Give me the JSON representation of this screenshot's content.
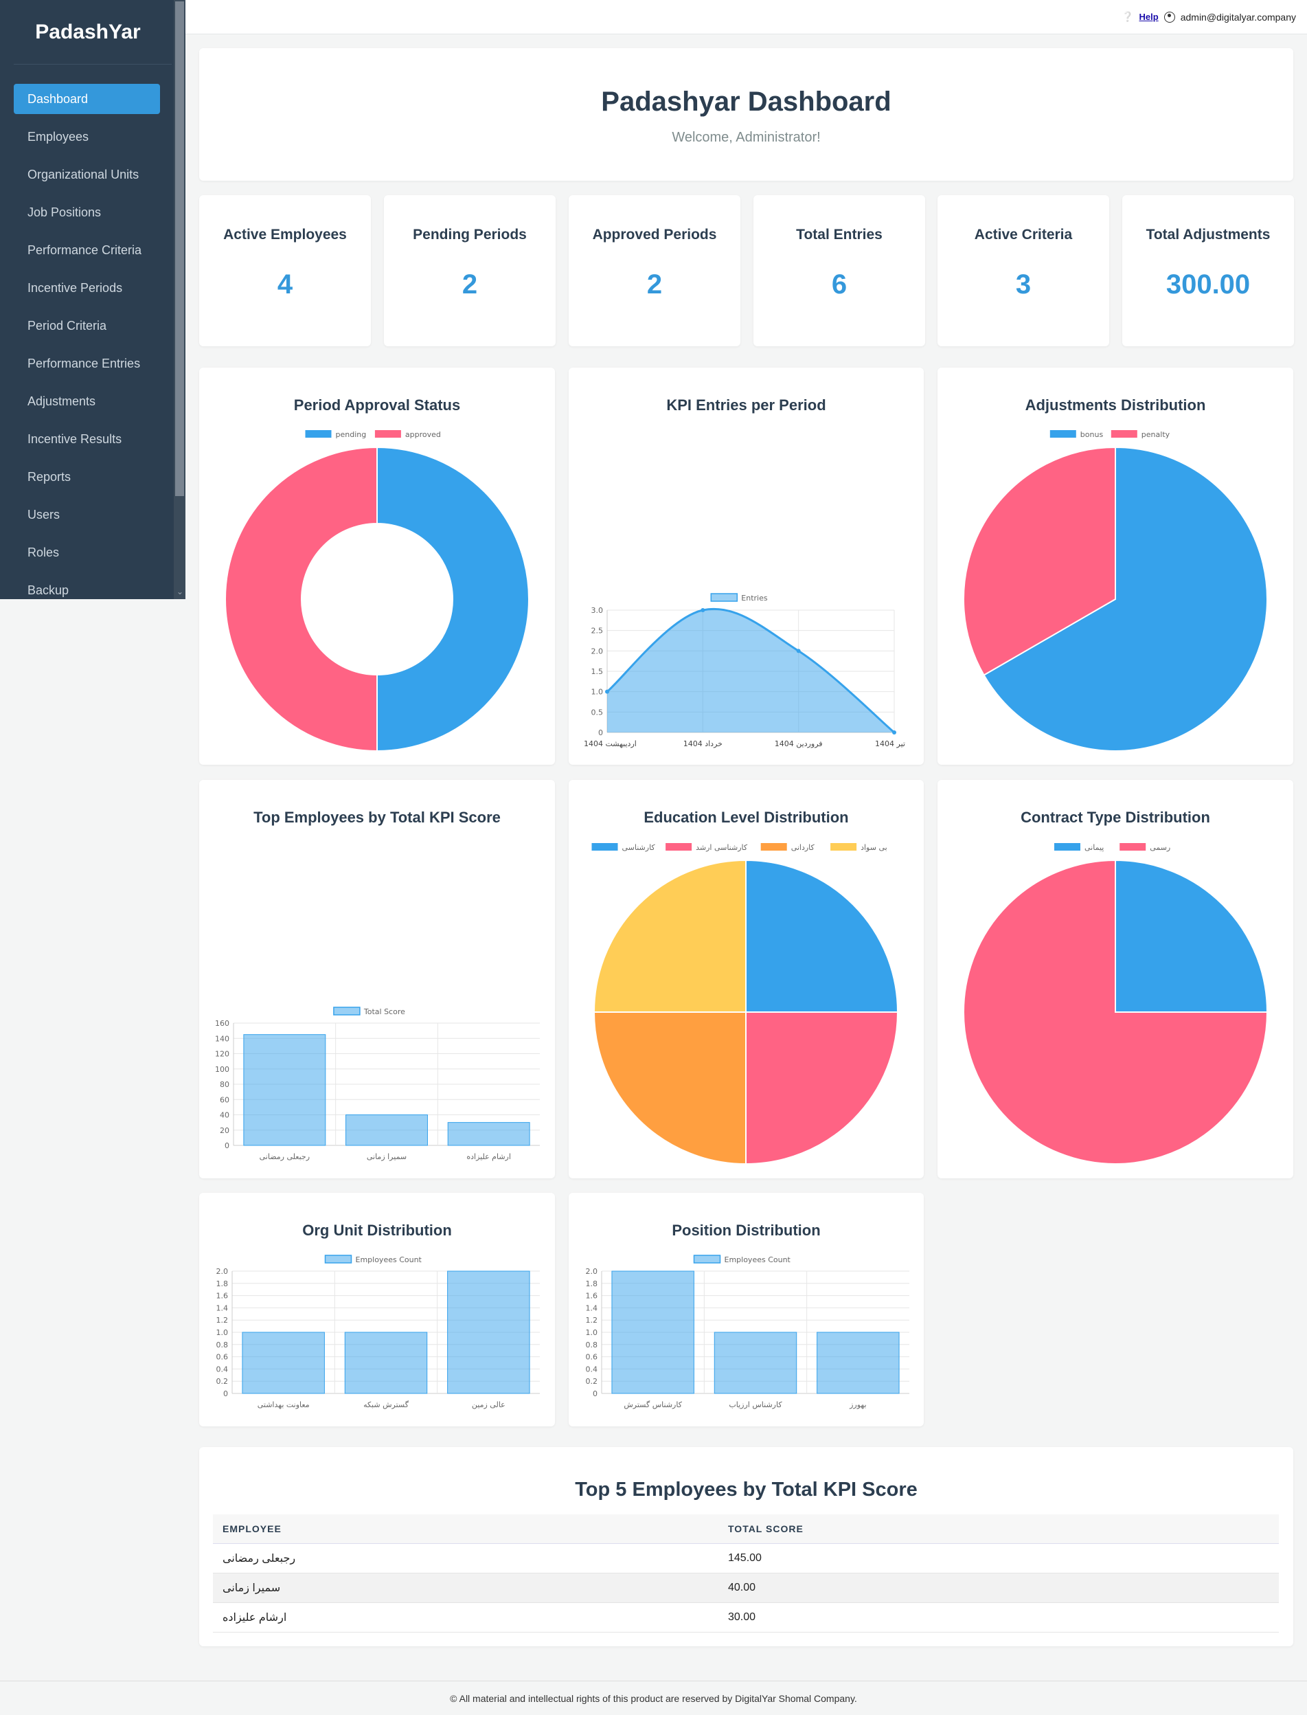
{
  "sidebar": {
    "brand": "PadashYar",
    "items": [
      {
        "label": "Dashboard"
      },
      {
        "label": "Employees"
      },
      {
        "label": "Organizational Units"
      },
      {
        "label": "Job Positions"
      },
      {
        "label": "Performance Criteria"
      },
      {
        "label": "Incentive Periods"
      },
      {
        "label": "Period Criteria"
      },
      {
        "label": "Performance Entries"
      },
      {
        "label": "Adjustments"
      },
      {
        "label": "Incentive Results"
      },
      {
        "label": "Reports"
      },
      {
        "label": "Users"
      },
      {
        "label": "Roles"
      },
      {
        "label": "Backup"
      }
    ]
  },
  "topbar": {
    "help": "Help",
    "user": "admin@digitalyar.company"
  },
  "header": {
    "title": "Padashyar Dashboard",
    "subtitle": "Welcome, Administrator!"
  },
  "stats": [
    {
      "title": "Active Employees",
      "value": "4"
    },
    {
      "title": "Pending Periods",
      "value": "2"
    },
    {
      "title": "Approved Periods",
      "value": "2"
    },
    {
      "title": "Total Entries",
      "value": "6"
    },
    {
      "title": "Active Criteria",
      "value": "3"
    },
    {
      "title": "Total Adjustments",
      "value": "300.00"
    }
  ],
  "colors": {
    "blue": "#36a2eb",
    "pink": "#ff6384",
    "orange": "#ff9f40",
    "yellow": "#ffcd56"
  },
  "chart_data": [
    {
      "type": "pie",
      "title": "Period Approval Status",
      "donut": true,
      "labels": [
        "pending",
        "approved"
      ],
      "values": [
        2,
        2
      ],
      "legend": "top"
    },
    {
      "type": "area",
      "title": "KPI Entries per Period",
      "categories": [
        "اردیبهشت 1404",
        "خرداد 1404",
        "فروردین 1404",
        "تیر 1404"
      ],
      "series": [
        {
          "name": "Entries",
          "values": [
            1,
            3,
            2,
            0
          ]
        }
      ],
      "ylim": [
        0,
        3
      ],
      "yticks": [
        "0",
        "0.5",
        "1.0",
        "1.5",
        "2.0",
        "2.5",
        "3.0"
      ]
    },
    {
      "type": "pie",
      "title": "Adjustments Distribution",
      "labels": [
        "bonus",
        "penalty"
      ],
      "values": [
        200,
        100
      ],
      "legend": "top"
    },
    {
      "type": "bar",
      "title": "Top Employees by Total KPI Score",
      "categories": [
        "رجبعلی رمضانی",
        "سمیرا زمانی",
        "ارشام علیزاده"
      ],
      "series": [
        {
          "name": "Total Score",
          "values": [
            145,
            40,
            30
          ]
        }
      ],
      "ylim": [
        0,
        160
      ],
      "yticks": [
        "0",
        "20",
        "40",
        "60",
        "80",
        "100",
        "120",
        "140",
        "160"
      ]
    },
    {
      "type": "pie",
      "title": "Education Level Distribution",
      "labels": [
        "کارشناسی",
        "کارشناسی ارشد",
        "کاردانی",
        "بی سواد"
      ],
      "values": [
        1,
        1,
        1,
        1
      ],
      "legend": "top"
    },
    {
      "type": "pie",
      "title": "Contract Type Distribution",
      "labels": [
        "پیمانی",
        "رسمی"
      ],
      "values": [
        1,
        3
      ],
      "legend": "top"
    },
    {
      "type": "bar",
      "title": "Org Unit Distribution",
      "categories": [
        "معاونت بهداشتی",
        "گسترش شبکه",
        "عالی زمین"
      ],
      "series": [
        {
          "name": "Employees Count",
          "values": [
            1,
            1,
            2
          ]
        }
      ],
      "ylim": [
        0,
        2
      ],
      "yticks": [
        "0",
        "0.2",
        "0.4",
        "0.6",
        "0.8",
        "1.0",
        "1.2",
        "1.4",
        "1.6",
        "1.8",
        "2.0"
      ]
    },
    {
      "type": "bar",
      "title": "Position Distribution",
      "categories": [
        "کارشناس گسترش",
        "کارشناس ارزیاب",
        "بهورز"
      ],
      "series": [
        {
          "name": "Employees Count",
          "values": [
            2,
            1,
            1
          ]
        }
      ],
      "ylim": [
        0,
        2
      ],
      "yticks": [
        "0",
        "0.2",
        "0.4",
        "0.6",
        "0.8",
        "1.0",
        "1.2",
        "1.4",
        "1.6",
        "1.8",
        "2.0"
      ]
    }
  ],
  "top_table": {
    "title": "Top 5 Employees by Total KPI Score",
    "headers": [
      "EMPLOYEE",
      "TOTAL SCORE"
    ],
    "rows": [
      {
        "employee": "رجبعلی رمضانی",
        "score": "145.00"
      },
      {
        "employee": "سمیرا زمانی",
        "score": "40.00"
      },
      {
        "employee": "ارشام علیزاده",
        "score": "30.00"
      }
    ]
  },
  "footer": "© All material and intellectual rights of this product are reserved by DigitalYar Shomal Company."
}
